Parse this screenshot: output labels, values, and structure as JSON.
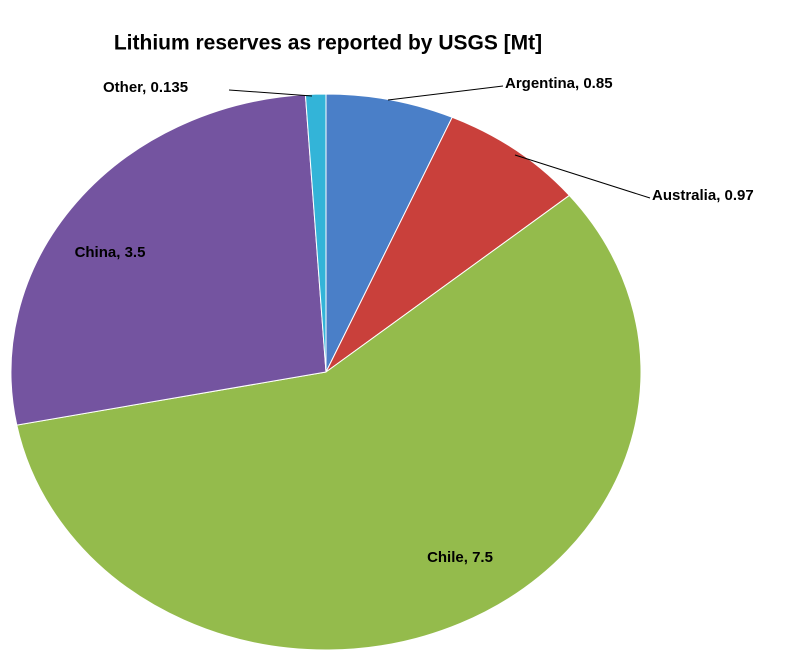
{
  "chart_data": {
    "type": "pie",
    "title": "Lithium reserves as reported by USGS [Mt]",
    "values": [
      0.85,
      0.97,
      7.5,
      3.5,
      0.135
    ],
    "value_labels": [
      "Argentina, 0.85",
      "Australia, 0.97",
      "Chile, 7.5",
      "China, 3.5",
      "Other, 0.135"
    ],
    "colors": [
      "#4a7fc8",
      "#c9403b",
      "#94bb4c",
      "#7454a0",
      "#33b4d8"
    ]
  }
}
